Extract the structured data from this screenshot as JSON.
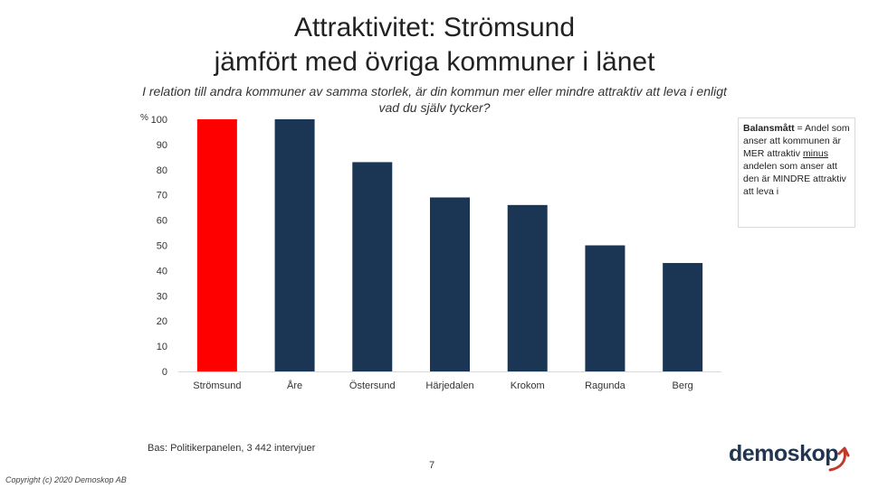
{
  "title_line1": "Attraktivitet: Strömsund",
  "title_line2": "jämfört med övriga kommuner i länet",
  "subtitle": "I relation till andra kommuner av samma storlek, är din kommun mer eller mindre attraktiv att leva i enligt vad du själv tycker?",
  "percent_sign": "%",
  "note": {
    "bold": "Balansmått",
    "part1": " = Andel som anser att kommunen är MER attraktiv ",
    "underline": "minus",
    "part2": " andelen som anser att den är MINDRE attraktiv att leva i"
  },
  "base_text": "Bas: Politikerpanelen, 3 442 intervjuer",
  "page_number": "7",
  "copyright": "Copyright (c) 2020 Demoskop AB",
  "logo_text": "demoskop",
  "colors": {
    "highlight": "#ff0000",
    "bar": "#1a3654",
    "brand": "#1f3551",
    "accent": "#c0392b"
  },
  "chart_data": {
    "type": "bar",
    "title": "Attraktivitet: Strömsund jämfört med övriga kommuner i länet",
    "ylabel": "%",
    "xlabel": "",
    "categories": [
      "Strömsund",
      "Åre",
      "Östersund",
      "Härjedalen",
      "Krokom",
      "Ragunda",
      "Berg"
    ],
    "values": [
      100,
      100,
      83,
      69,
      66,
      50,
      43
    ],
    "highlight_index": 0,
    "ylim": [
      0,
      100
    ],
    "yticks": [
      0,
      10,
      20,
      30,
      40,
      50,
      60,
      70,
      80,
      90,
      100
    ],
    "grid": false
  }
}
